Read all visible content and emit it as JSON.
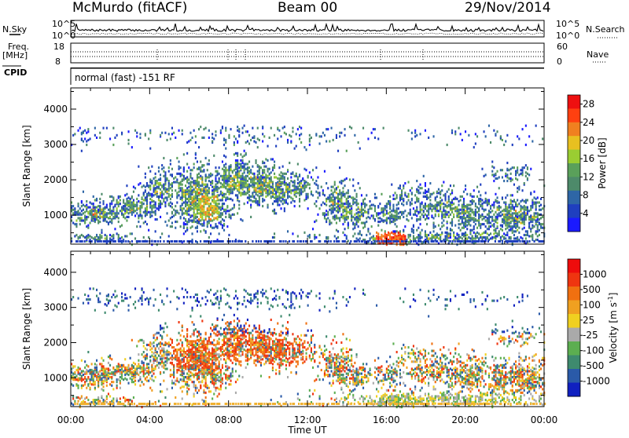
{
  "header": {
    "station": "McMurdo (fitACF)",
    "beam": "Beam 00",
    "date": "29/Nov/2014"
  },
  "status": {
    "nsky_label": "N.Sky",
    "nsearch_label": "N.Search",
    "freq_label": "Freq.",
    "mhz_label": "[MHz]",
    "nave_label": "Nave",
    "cpid_label": "CPID",
    "noise_ticks": [
      "10^5",
      "10^0"
    ],
    "freq_ticks": [
      "18",
      "8"
    ],
    "nave_ticks": [
      "60",
      "0"
    ],
    "cpid_text": "normal (fast) -151 RF"
  },
  "colors": {
    "power_scale": [
      "#1a1aff",
      "#1f3fbf",
      "#2e66a6",
      "#4d8a6a",
      "#5aa05a",
      "#9acd32",
      "#e8c020",
      "#f08020",
      "#ff4010",
      "#ee1010"
    ],
    "velocity_scale": [
      "#1020c0",
      "#2a5aa8",
      "#3e8a6e",
      "#5cae50",
      "#aaaaaa",
      "#f0d020",
      "#f0a020",
      "#f07010",
      "#ef3510",
      "#ee0c0c"
    ]
  },
  "chart_data": [
    {
      "type": "heatmap",
      "name": "Power",
      "ylabel": "Slant Range [km]",
      "yticks": [
        "1000",
        "2000",
        "3000",
        "4000"
      ],
      "ylim": [
        180,
        4600
      ],
      "xlim": [
        0,
        24
      ],
      "xticks": [
        "00:00",
        "04:00",
        "08:00",
        "12:00",
        "16:00",
        "20:00",
        "00:00"
      ],
      "colorbar_label": "Power [dB]",
      "colorbar_ticks": [
        "4",
        "8",
        "12",
        "16",
        "20",
        "24",
        "28"
      ],
      "colorbar_range": [
        0,
        30
      ]
    },
    {
      "type": "heatmap",
      "name": "Velocity",
      "ylabel": "Slant Range [km]",
      "yticks": [
        "1000",
        "2000",
        "3000",
        "4000"
      ],
      "ylim": [
        180,
        4600
      ],
      "xlim": [
        0,
        24
      ],
      "xticks": [
        "00:00",
        "04:00",
        "08:00",
        "12:00",
        "16:00",
        "20:00",
        "00:00"
      ],
      "xlabel": "Time UT",
      "colorbar_label": "Velocity [m s",
      "colorbar_label_sup": "-1",
      "colorbar_label_end": "]",
      "colorbar_ticks": [
        "1000",
        "500",
        "100",
        "25",
        "-25",
        "-100",
        "-500",
        "-1000"
      ]
    }
  ]
}
